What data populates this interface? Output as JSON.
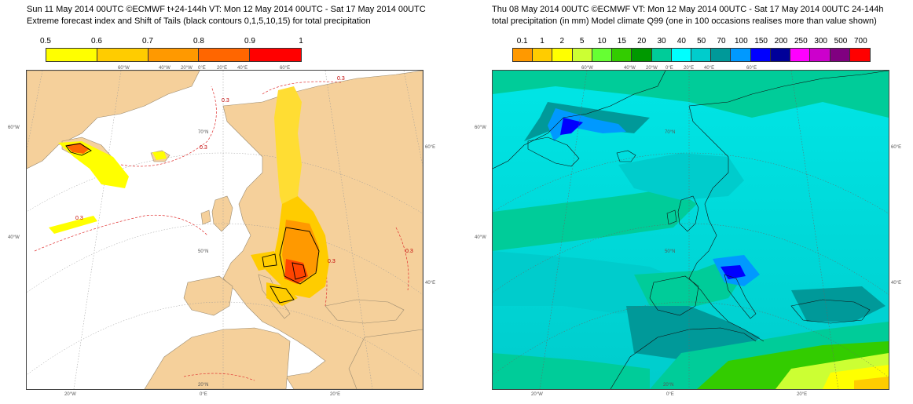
{
  "left": {
    "title_line1": "Sun 11 May 2014 00UTC ©ECMWF t+24-144h  VT: Mon 12 May 2014 00UTC - Sat 17 May 2014 00UTC",
    "title_line2": "Extreme forecast index and Shift of Tails (black contours 0,1,5,10,15) for total precipitation",
    "colorbar": {
      "ticks": [
        "0.5",
        "0.6",
        "0.7",
        "0.8",
        "0.9",
        "1"
      ],
      "colors": [
        "#ffff00",
        "#ffcc00",
        "#ff9900",
        "#ff6600",
        "#ff0000"
      ]
    },
    "gridlabels": {
      "top": [
        "60°W",
        "40°W",
        "20°W",
        "0°E",
        "20°E",
        "40°E",
        "60°E"
      ],
      "left": [
        "60°W",
        "40°W"
      ],
      "right": [
        "60°E",
        "40°E"
      ],
      "bottom": [
        "20°W",
        "20°N",
        "0°E",
        "20°E"
      ],
      "inner": [
        "70°N",
        "50°N"
      ]
    },
    "contour_labels": [
      "0.3",
      "0.3",
      "0.3",
      "0.3",
      "0.3",
      "0.3"
    ],
    "colors": {
      "land": "#f5d09b",
      "sea": "#ffffff"
    }
  },
  "right": {
    "title_line1": "Thu 08 May 2014 00UTC ©ECMWF VT: Mon 12 May 2014 00UTC - Sat 17 May 2014 00UTC   24-144h",
    "title_line2": "total precipitation (in mm)  Model climate Q99 (one in 100 occasions realises more than value shown)",
    "colorbar": {
      "ticks": [
        "0.1",
        "1",
        "2",
        "5",
        "10",
        "15",
        "20",
        "30",
        "40",
        "50",
        "70",
        "100",
        "150",
        "200",
        "250",
        "300",
        "500",
        "700"
      ],
      "colors": [
        "#ff9900",
        "#ffcc00",
        "#ffff00",
        "#ccff33",
        "#66ff33",
        "#33cc00",
        "#009900",
        "#00cc99",
        "#00ffff",
        "#00cccc",
        "#009999",
        "#0099ff",
        "#0000ff",
        "#000099",
        "#ff00ff",
        "#cc00cc",
        "#800080",
        "#ff0000"
      ]
    },
    "gridlabels": {
      "top": [
        "60°W",
        "40°W",
        "20°W",
        "0°E",
        "20°E",
        "40°E",
        "60°E"
      ],
      "left": [
        "60°W",
        "40°W"
      ],
      "right": [
        "60°E",
        "40°E"
      ],
      "bottom": [
        "20°W",
        "20°N",
        "0°E",
        "20°E"
      ],
      "inner": [
        "70°N",
        "50°N"
      ]
    }
  }
}
